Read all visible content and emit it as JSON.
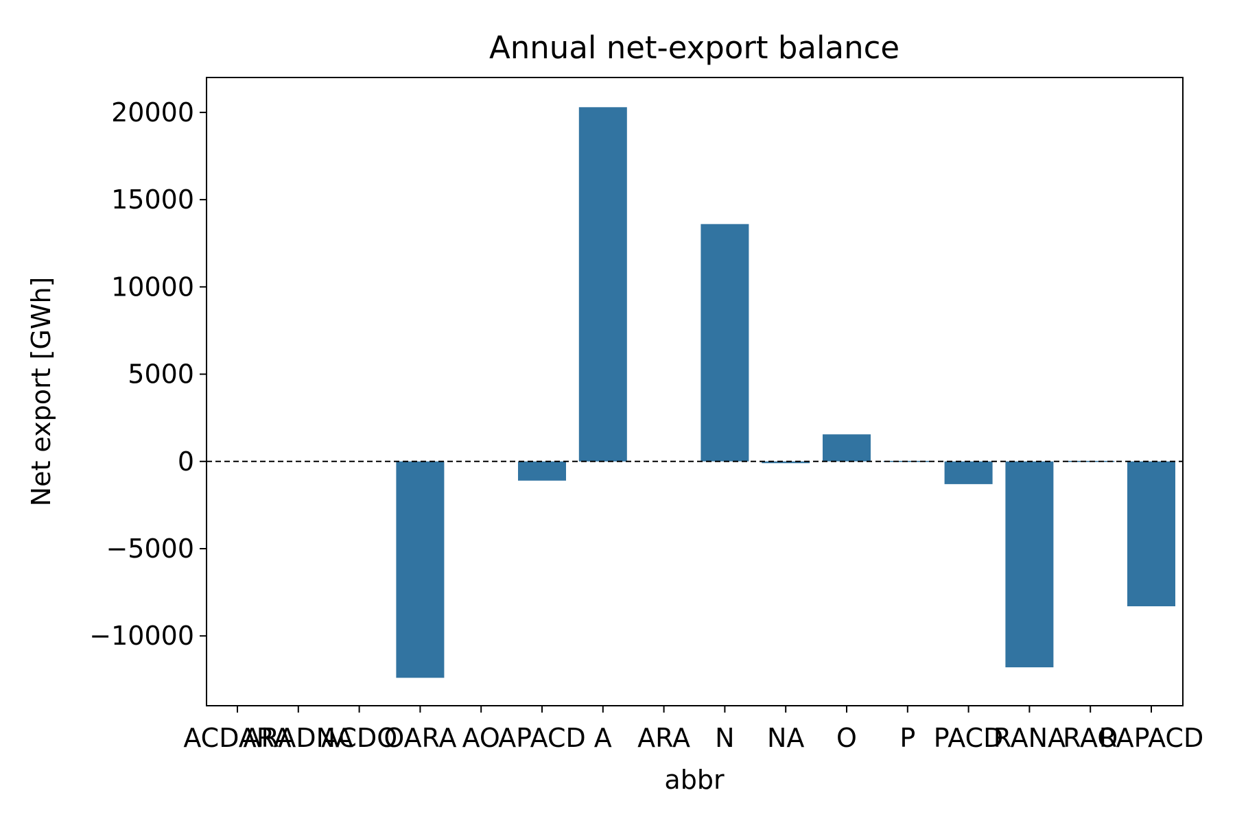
{
  "chart_data": {
    "type": "bar",
    "title": "Annual net-export balance",
    "xlabel": "abbr",
    "ylabel": "Net export [GWh]",
    "categories": [
      "ACDARA",
      "ARADNA",
      "ACDO",
      "OARA",
      "AO",
      "APACD",
      "A",
      "ARA",
      "N",
      "NA",
      "O",
      "P",
      "PACD",
      "RANA",
      "RAO",
      "RAPACD"
    ],
    "values": [
      0,
      0,
      0,
      -12400,
      0,
      -1100,
      20300,
      0,
      13600,
      -100,
      1550,
      30,
      -1300,
      -11800,
      30,
      -8300
    ],
    "ylim": [
      -14000,
      22000
    ],
    "yticks": [
      -10000,
      -5000,
      0,
      5000,
      10000,
      15000,
      20000
    ],
    "ytick_labels": [
      "−10000",
      "−5000",
      "0",
      "5000",
      "10000",
      "15000",
      "20000"
    ],
    "reference_line": {
      "y": 0,
      "style": "dashed"
    },
    "bar_color": "#3274a1",
    "grid": false,
    "legend": "none"
  }
}
